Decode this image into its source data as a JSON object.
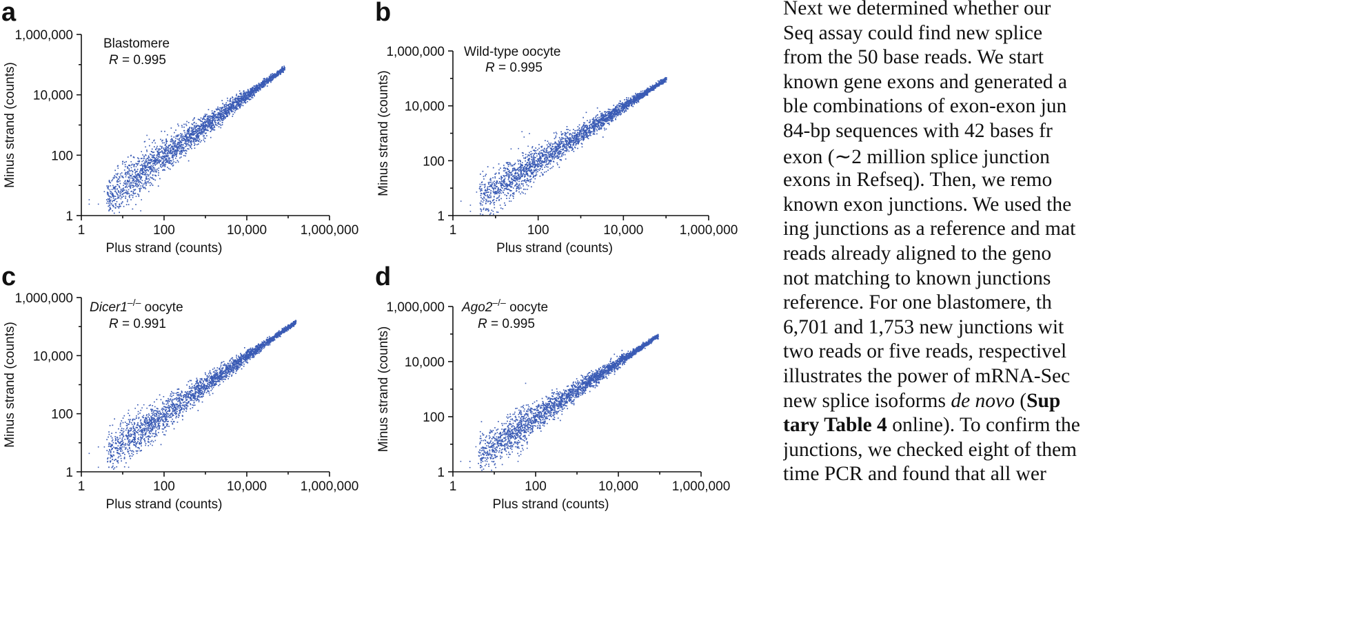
{
  "chart_data": [
    {
      "type": "scatter",
      "panel": "a",
      "title": "Blastomere",
      "r_value": "R = 0.995",
      "xlabel": "Plus strand (counts)",
      "ylabel": "Minus strand (counts)",
      "xscale": "log",
      "yscale": "log",
      "xlim": [
        1,
        1000000
      ],
      "ylim": [
        1,
        1000000
      ],
      "xticks": [
        "1",
        "100",
        "10,000",
        "1,000,000"
      ],
      "yticks": [
        "1",
        "100",
        "10,000",
        "1,000,000"
      ],
      "x_max": 80000,
      "point_color": "#3a5bb5",
      "grid": false,
      "legend": "none"
    },
    {
      "type": "scatter",
      "panel": "b",
      "title": "Wild-type oocyte",
      "r_value": "R = 0.995",
      "xlabel": "Plus strand (counts)",
      "ylabel": "Minus strand (counts)",
      "xscale": "log",
      "yscale": "log",
      "xlim": [
        1,
        1000000
      ],
      "ylim": [
        1,
        1000000
      ],
      "xticks": [
        "1",
        "100",
        "10,000",
        "1,000,000"
      ],
      "yticks": [
        "1",
        "100",
        "10,000",
        "1,000,000"
      ],
      "x_max": 100000,
      "point_color": "#3a5bb5",
      "grid": false,
      "legend": "none"
    },
    {
      "type": "scatter",
      "panel": "c",
      "title_main": "Dicer1",
      "title_sup": "–/–",
      "title_rest": " oocyte",
      "r_value": "R = 0.991",
      "xlabel": "Plus strand (counts)",
      "ylabel": "Minus strand (counts)",
      "xscale": "log",
      "yscale": "log",
      "xlim": [
        1,
        1000000
      ],
      "ylim": [
        1,
        1000000
      ],
      "xticks": [
        "1",
        "100",
        "10,000",
        "1,000,000"
      ],
      "yticks": [
        "1",
        "100",
        "10,000",
        "1,000,000"
      ],
      "x_max": 150000,
      "point_color": "#3a5bb5",
      "grid": false,
      "legend": "none"
    },
    {
      "type": "scatter",
      "panel": "d",
      "title_main": "Ago2",
      "title_sup": "–/–",
      "title_rest": " oocyte",
      "r_value": "R = 0.995",
      "xlabel": "Plus strand (counts)",
      "ylabel": "Minus strand (counts)",
      "xscale": "log",
      "yscale": "log",
      "xlim": [
        1,
        1000000
      ],
      "ylim": [
        1,
        1000000
      ],
      "xticks": [
        "1",
        "100",
        "10,000",
        "1,000,000"
      ],
      "yticks": [
        "1",
        "100",
        "10,000",
        "1,000,000"
      ],
      "x_max": 90000,
      "point_color": "#3a5bb5",
      "grid": false,
      "legend": "none"
    }
  ],
  "body_text": {
    "lines": [
      [
        {
          "t": "    Next we determined whether our"
        }
      ],
      [
        {
          "t": "Seq assay could find new splice"
        }
      ],
      [
        {
          "t": "from the 50 base reads. We start"
        }
      ],
      [
        {
          "t": "known gene exons and generated a"
        }
      ],
      [
        {
          "t": "ble combinations of exon-exon jun"
        }
      ],
      [
        {
          "t": "84-bp sequences with 42 bases fr"
        }
      ],
      [
        {
          "t": "exon (∼2 million splice junction"
        }
      ],
      [
        {
          "t": "exons in Refseq). Then, we remo"
        }
      ],
      [
        {
          "t": "known exon junctions. We used the"
        }
      ],
      [
        {
          "t": "ing junctions as a reference and mat"
        }
      ],
      [
        {
          "t": "reads already aligned to the geno"
        }
      ],
      [
        {
          "t": "not matching to known junctions"
        }
      ],
      [
        {
          "t": "reference. For one blastomere, th"
        }
      ],
      [
        {
          "t": "6,701 and 1,753 new junctions wit"
        }
      ],
      [
        {
          "t": "two reads or five reads, respectivel"
        }
      ],
      [
        {
          "t": "illustrates the power of mRNA-Sec"
        }
      ],
      [
        {
          "t": "new splice isoforms "
        },
        {
          "t": "de novo",
          "s": "i"
        },
        {
          "t": " ("
        },
        {
          "t": "Sup",
          "s": "b"
        }
      ],
      [
        {
          "t": "tary Table 4",
          "s": "b"
        },
        {
          "t": " online). To confirm the"
        }
      ],
      [
        {
          "t": "junctions, we checked eight of them"
        }
      ],
      [
        {
          "t": "time PCR and found that all wer"
        }
      ]
    ]
  }
}
